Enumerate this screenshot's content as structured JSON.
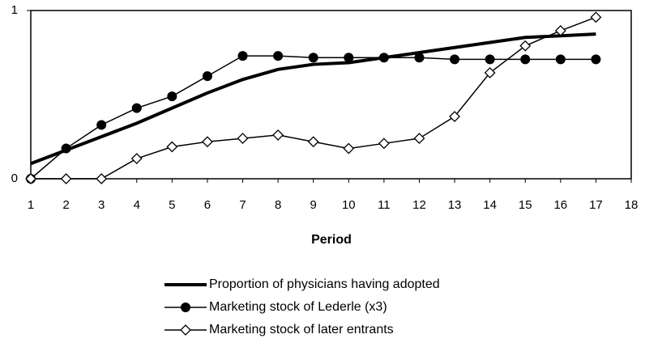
{
  "chart_data": {
    "type": "line",
    "x_label": "Period",
    "x": [
      1,
      2,
      3,
      4,
      5,
      6,
      7,
      8,
      9,
      10,
      11,
      12,
      13,
      14,
      15,
      16,
      17
    ],
    "xlim": [
      1,
      18
    ],
    "xticks": [
      1,
      2,
      3,
      4,
      5,
      6,
      7,
      8,
      9,
      10,
      11,
      12,
      13,
      14,
      15,
      16,
      17,
      18
    ],
    "ylim": [
      0,
      1
    ],
    "yticks": [
      0,
      1
    ],
    "grid": false,
    "legend": "bottom",
    "series": [
      {
        "name": "Proportion of physicians having adopted",
        "color": "#000000",
        "marker": "none",
        "width": 4,
        "values": [
          0.09,
          0.17,
          0.25,
          0.33,
          0.42,
          0.51,
          0.59,
          0.65,
          0.68,
          0.69,
          0.72,
          0.75,
          0.78,
          0.81,
          0.84,
          0.85,
          0.86
        ]
      },
      {
        "name": "Marketing stock of Lederle (x3)",
        "color": "#000000",
        "marker": "circle",
        "width": 1.5,
        "values": [
          0,
          0.18,
          0.32,
          0.42,
          0.49,
          0.61,
          0.73,
          0.73,
          0.72,
          0.72,
          0.72,
          0.72,
          0.71,
          0.71,
          0.71,
          0.71,
          0.71
        ]
      },
      {
        "name": "Marketing stock of later entrants",
        "color": "#000000",
        "marker": "diamond",
        "width": 1.5,
        "values": [
          0,
          0,
          0,
          0.12,
          0.19,
          0.22,
          0.24,
          0.26,
          0.22,
          0.18,
          0.21,
          0.24,
          0.37,
          0.63,
          0.79,
          0.88,
          0.96
        ]
      }
    ]
  }
}
